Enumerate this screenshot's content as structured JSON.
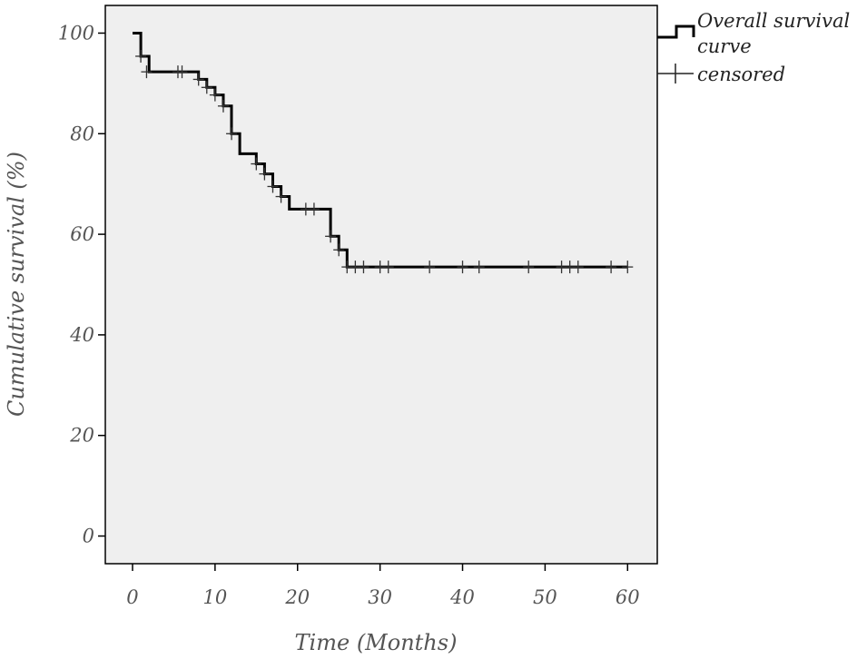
{
  "chart_data": {
    "type": "line",
    "subtype": "kaplan-meier-step",
    "xlabel": "Time (Months)",
    "ylabel": "Cumulative survival (%)",
    "xlim": [
      -3.3,
      63.6
    ],
    "ylim": [
      -5.5,
      105.5
    ],
    "xticks": [
      0,
      10,
      20,
      30,
      40,
      50,
      60
    ],
    "yticks": [
      0,
      20,
      40,
      60,
      80,
      100
    ],
    "grid": false,
    "plot_background": "#efefef",
    "legend_position": "right-top",
    "series": [
      {
        "name": "Overall survival curve",
        "color": "#000000",
        "steps": [
          [
            0,
            100
          ],
          [
            1,
            100
          ],
          [
            1,
            95.4
          ],
          [
            2,
            95.4
          ],
          [
            2,
            92.3
          ],
          [
            8,
            92.3
          ],
          [
            8,
            90.8
          ],
          [
            9,
            90.8
          ],
          [
            9,
            89.2
          ],
          [
            10,
            89.2
          ],
          [
            10,
            87.7
          ],
          [
            11,
            87.7
          ],
          [
            11,
            85.5
          ],
          [
            12,
            85.5
          ],
          [
            12,
            80
          ],
          [
            13,
            80
          ],
          [
            13,
            76
          ],
          [
            15,
            76
          ],
          [
            15,
            74
          ],
          [
            16,
            74
          ],
          [
            16,
            72
          ],
          [
            17,
            72
          ],
          [
            17,
            69.5
          ],
          [
            18,
            69.5
          ],
          [
            18,
            67.5
          ],
          [
            19,
            67.5
          ],
          [
            19,
            65
          ],
          [
            24,
            65
          ],
          [
            24,
            59.6
          ],
          [
            25,
            59.6
          ],
          [
            25,
            56.9
          ],
          [
            26,
            56.9
          ],
          [
            26,
            53.5
          ],
          [
            60,
            53.5
          ]
        ]
      }
    ],
    "censored": {
      "name": "censored",
      "points": [
        [
          1,
          95.4
        ],
        [
          1.7,
          92.3
        ],
        [
          5.5,
          92.3
        ],
        [
          6,
          92.3
        ],
        [
          8,
          90.8
        ],
        [
          9,
          89.2
        ],
        [
          10,
          87.7
        ],
        [
          11,
          85.5
        ],
        [
          12,
          80
        ],
        [
          15,
          74
        ],
        [
          16,
          72
        ],
        [
          17,
          69.5
        ],
        [
          18,
          67.5
        ],
        [
          21,
          65
        ],
        [
          22,
          65
        ],
        [
          24,
          59.6
        ],
        [
          25,
          56.9
        ],
        [
          26,
          53.5
        ],
        [
          27,
          53.5
        ],
        [
          28,
          53.5
        ],
        [
          30,
          53.5
        ],
        [
          31,
          53.5
        ],
        [
          36,
          53.5
        ],
        [
          40,
          53.5
        ],
        [
          42,
          53.5
        ],
        [
          48,
          53.5
        ],
        [
          52,
          53.5
        ],
        [
          53,
          53.5
        ],
        [
          54,
          53.5
        ],
        [
          58,
          53.5
        ],
        [
          60,
          53.5
        ]
      ]
    },
    "legend": {
      "line_label_1": "Overall survival",
      "line_label_2": "curve",
      "censored_label": "censored"
    }
  }
}
